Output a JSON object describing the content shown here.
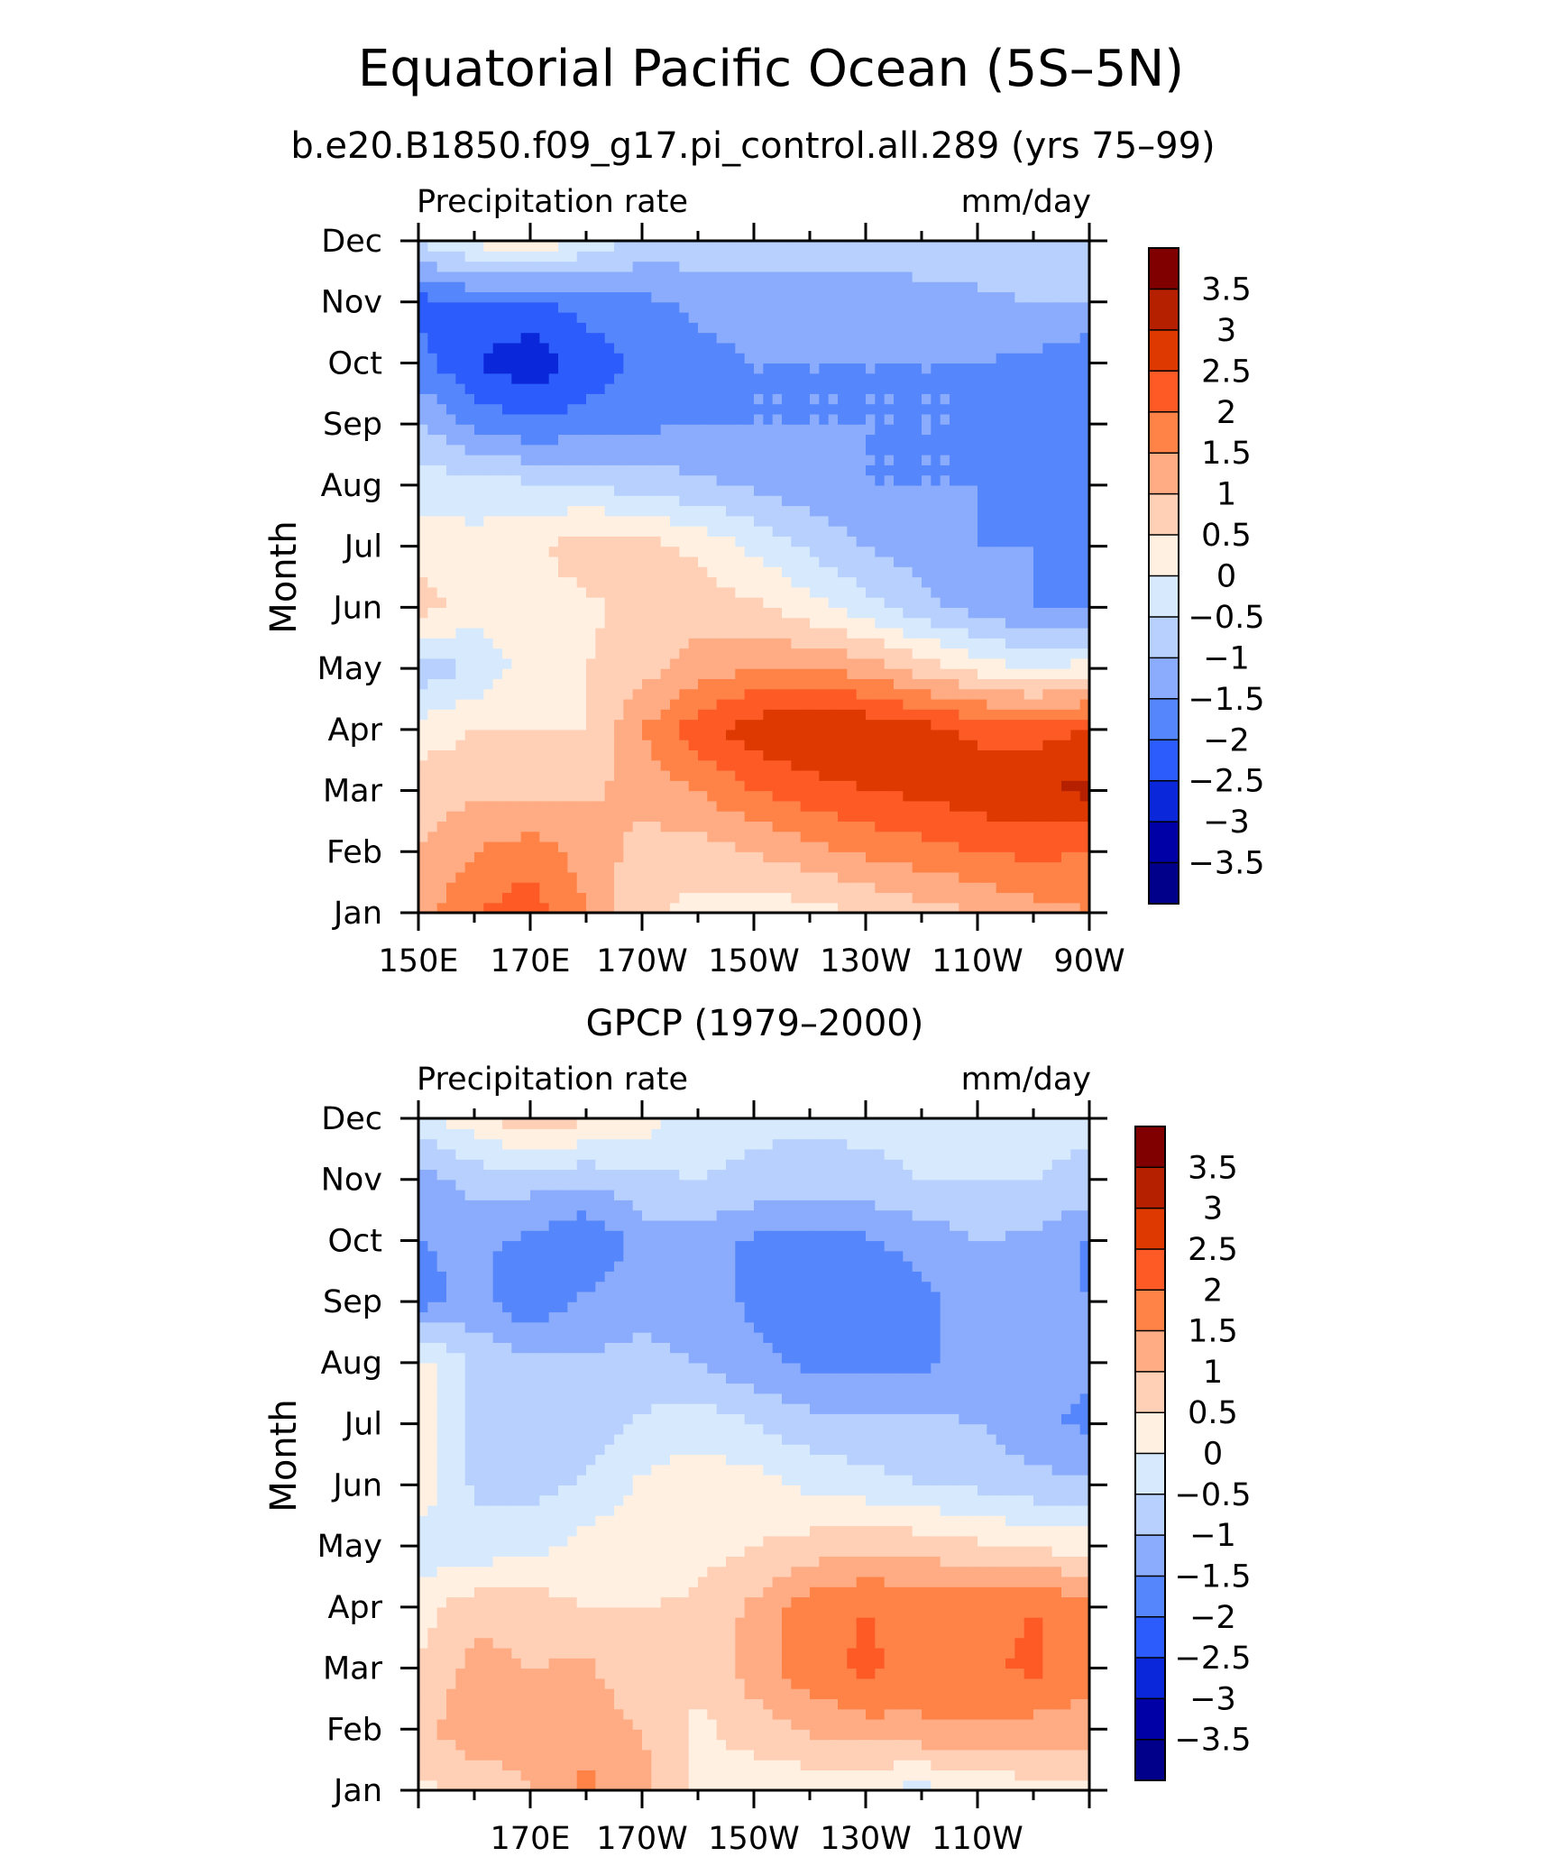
{
  "figure": {
    "title": "Equatorial Pacific Ocean (5S–5N)",
    "panel1_title": "b.e20.B1850.f09_g17.pi_control.all.289 (yrs 75–99)",
    "panel2_title": "GPCP (1979–2000)"
  },
  "colorbar": {
    "labels": [
      "3.5",
      "3",
      "2.5",
      "2",
      "1.5",
      "1",
      "0.5",
      "0",
      "−0.5",
      "−1",
      "−1.5",
      "−2",
      "−2.5",
      "−3",
      "−3.5"
    ],
    "colors": [
      "#800000",
      "#b52000",
      "#dd3900",
      "#fe5a26",
      "#ff8247",
      "#ffab83",
      "#ffcfb6",
      "#fff0e2",
      "#d7eafd",
      "#b7d0fd",
      "#8bacfc",
      "#5586fc",
      "#2c5cfc",
      "#0a28d9",
      "#0000a7",
      "#00008b"
    ]
  },
  "chart_data": [
    {
      "type": "heatmap",
      "title": "b.e20.B1850.f09_g17.pi_control.all.289 (yrs 75–99)",
      "left_label": "Precipitation rate",
      "right_label": "mm/day",
      "ylabel": "Month",
      "x_ticks": [
        "150E",
        "170E",
        "170W",
        "150W",
        "130W",
        "110W",
        "90W"
      ],
      "y_ticks": [
        "Jan",
        "Feb",
        "Mar",
        "Apr",
        "May",
        "Jun",
        "Jul",
        "Aug",
        "Sep",
        "Oct",
        "Nov",
        "Dec"
      ],
      "xlim": [
        150,
        270
      ],
      "levels": [
        -3.5,
        -3,
        -2.5,
        -2,
        -1.5,
        -1,
        -0.5,
        0,
        0.5,
        1,
        1.5,
        2,
        2.5,
        3,
        3.5
      ],
      "x": [
        150,
        160,
        170,
        180,
        190,
        200,
        210,
        220,
        230,
        240,
        250,
        260,
        270
      ],
      "months": [
        "Jan",
        "Feb",
        "Mar",
        "Apr",
        "May",
        "Jun",
        "Jul",
        "Aug",
        "Sep",
        "Oct",
        "Nov",
        "Dec"
      ],
      "values": [
        [
          1.2,
          2.0,
          2.3,
          1.5,
          0.6,
          0.3,
          0.2,
          0.3,
          0.5,
          0.8,
          1.0,
          1.3,
          1.5
        ],
        [
          1.0,
          1.5,
          1.8,
          1.3,
          0.8,
          0.8,
          1.0,
          1.3,
          1.6,
          1.8,
          2.0,
          2.1,
          2.0
        ],
        [
          0.8,
          0.9,
          0.8,
          0.9,
          1.2,
          1.5,
          2.0,
          2.3,
          2.5,
          2.6,
          2.8,
          3.0,
          3.1
        ],
        [
          0.2,
          0.5,
          0.5,
          0.5,
          1.5,
          2.3,
          2.8,
          3.0,
          2.9,
          2.7,
          2.4,
          2.3,
          2.5
        ],
        [
          -0.8,
          -0.5,
          0.3,
          0.5,
          0.8,
          1.2,
          1.5,
          1.5,
          1.3,
          0.8,
          0.3,
          0.0,
          0.2
        ],
        [
          0.7,
          0.3,
          0.2,
          0.4,
          0.7,
          0.8,
          0.6,
          0.2,
          -0.3,
          -0.8,
          -1.2,
          -1.5,
          -1.6
        ],
        [
          0.3,
          0.2,
          0.4,
          0.8,
          0.7,
          0.4,
          -0.1,
          -0.6,
          -1.0,
          -1.3,
          -1.5,
          -1.5,
          -1.6
        ],
        [
          -0.2,
          -0.3,
          -0.4,
          -0.5,
          -0.7,
          -0.9,
          -1.1,
          -1.3,
          -1.5,
          -1.5,
          -1.5,
          -1.6,
          -1.9
        ],
        [
          -1.0,
          -1.6,
          -1.9,
          -1.8,
          -1.6,
          -1.5,
          -1.5,
          -1.5,
          -1.5,
          -1.5,
          -1.5,
          -1.6,
          -2.0
        ],
        [
          -1.8,
          -2.5,
          -2.9,
          -2.3,
          -1.9,
          -1.6,
          -1.5,
          -1.5,
          -1.5,
          -1.5,
          -1.5,
          -1.6,
          -1.9
        ],
        [
          -2.2,
          -2.0,
          -2.1,
          -1.8,
          -1.6,
          -1.4,
          -1.4,
          -1.4,
          -1.3,
          -1.2,
          -1.1,
          -1.0,
          -1.0
        ],
        [
          -0.4,
          0.1,
          0.5,
          -0.2,
          -0.6,
          -0.7,
          -0.7,
          -0.7,
          -0.7,
          -0.7,
          -0.7,
          -0.5,
          -0.6
        ]
      ]
    },
    {
      "type": "heatmap",
      "title": "GPCP (1979–2000)",
      "left_label": "Precipitation rate",
      "right_label": "mm/day",
      "ylabel": "Month",
      "x_ticks": [
        "170E",
        "170W",
        "150W",
        "130W",
        "110W"
      ],
      "y_ticks": [
        "Jan",
        "Feb",
        "Mar",
        "Apr",
        "May",
        "Jun",
        "Jul",
        "Aug",
        "Sep",
        "Oct",
        "Nov",
        "Dec"
      ],
      "xlim": [
        150,
        270
      ],
      "levels": [
        -3.5,
        -3,
        -2.5,
        -2,
        -1.5,
        -1,
        -0.5,
        0,
        0.5,
        1,
        1.5,
        2,
        2.5,
        3,
        3.5
      ],
      "x": [
        150,
        160,
        170,
        180,
        190,
        200,
        210,
        220,
        230,
        240,
        250,
        260,
        270
      ],
      "months": [
        "Jan",
        "Feb",
        "Mar",
        "Apr",
        "May",
        "Jun",
        "Jul",
        "Aug",
        "Sep",
        "Oct",
        "Nov",
        "Dec"
      ],
      "values": [
        [
          0.4,
          0.6,
          1.0,
          1.6,
          1.2,
          0.4,
          0.2,
          0.1,
          0.0,
          -0.2,
          0.1,
          0.3,
          0.4
        ],
        [
          0.8,
          1.4,
          1.2,
          1.4,
          1.0,
          0.4,
          0.7,
          1.1,
          1.3,
          1.4,
          1.4,
          1.3,
          1.2
        ],
        [
          0.5,
          1.2,
          1.0,
          1.1,
          0.5,
          0.6,
          1.3,
          1.8,
          2.1,
          1.8,
          1.9,
          2.1,
          1.7
        ],
        [
          0.3,
          0.8,
          0.8,
          0.5,
          0.5,
          0.6,
          1.1,
          1.8,
          2.0,
          1.8,
          1.8,
          2.0,
          1.8
        ],
        [
          -0.4,
          -0.3,
          -0.2,
          0.2,
          0.2,
          0.3,
          0.5,
          0.7,
          0.9,
          0.8,
          0.6,
          0.4,
          0.3
        ],
        [
          0.4,
          -0.6,
          -0.7,
          -0.4,
          0.1,
          0.3,
          0.2,
          -0.1,
          -0.3,
          -0.5,
          -0.6,
          -0.8,
          -0.9
        ],
        [
          0.3,
          -0.6,
          -0.7,
          -0.8,
          -0.4,
          -0.2,
          -0.5,
          -0.8,
          -0.9,
          -0.9,
          -1.0,
          -1.4,
          -1.6
        ],
        [
          0.2,
          -0.6,
          -0.8,
          -0.9,
          -0.9,
          -1.0,
          -1.4,
          -1.6,
          -1.6,
          -1.6,
          -1.2,
          -1.4,
          -1.4
        ],
        [
          -1.7,
          -1.3,
          -1.9,
          -1.4,
          -1.1,
          -1.2,
          -1.6,
          -1.7,
          -1.8,
          -1.7,
          -1.1,
          -1.4,
          -1.5
        ],
        [
          -1.5,
          -1.4,
          -1.6,
          -2.0,
          -1.3,
          -1.2,
          -1.6,
          -1.6,
          -1.6,
          -1.3,
          -1.0,
          -1.1,
          -1.6
        ],
        [
          -1.2,
          -0.8,
          -0.8,
          -0.9,
          -0.6,
          -0.5,
          -0.6,
          -0.7,
          -0.6,
          -0.5,
          -0.5,
          -0.5,
          -0.6
        ],
        [
          -0.2,
          0.3,
          0.9,
          0.6,
          0.3,
          -0.3,
          -0.4,
          -0.4,
          -0.4,
          -0.4,
          -0.4,
          -0.4,
          -0.4
        ]
      ]
    }
  ]
}
